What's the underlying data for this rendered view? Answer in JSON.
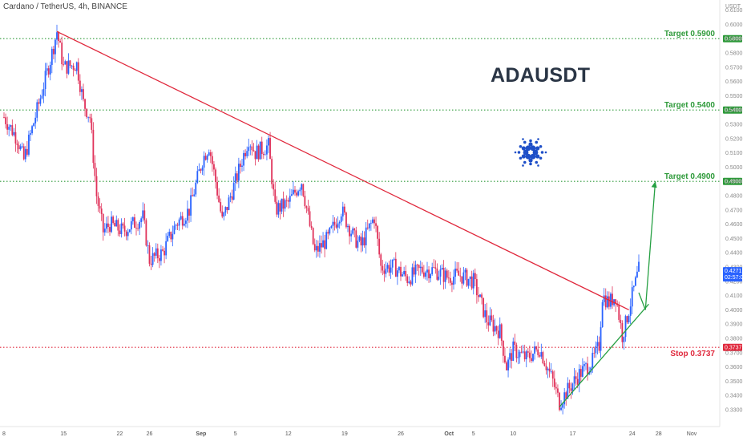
{
  "header": {
    "title": "Cardano / TetherUS, 4h, BINANCE",
    "currency": "USDT"
  },
  "symbol": "ADAUSDT",
  "colors": {
    "up": "#2962ff",
    "down": "#e0325a",
    "trendline": "#e0283c",
    "target": "#2e9a3a",
    "stop": "#e0283c",
    "support": "#26a043"
  },
  "chart_data": {
    "type": "candlestick",
    "title": "Cardano / TetherUS, 4h, BINANCE",
    "ylim": [
      0.325,
      0.615
    ],
    "yticks": [
      "0.6100",
      "0.6000",
      "0.5900",
      "0.5800",
      "0.5700",
      "0.5600",
      "0.5500",
      "0.5400",
      "0.5300",
      "0.5200",
      "0.5100",
      "0.5000",
      "0.4900",
      "0.4800",
      "0.4700",
      "0.4600",
      "0.4500",
      "0.4400",
      "0.4300",
      "0.4200",
      "0.4100",
      "0.4000",
      "0.3900",
      "0.3800",
      "0.3700",
      "0.3600",
      "0.3500",
      "0.3400",
      "0.3300"
    ],
    "x_labels": [
      "8",
      "15",
      "22",
      "26",
      "Sep",
      "5",
      "12",
      "19",
      "26",
      "Oct",
      "5",
      "10",
      "17",
      "24",
      "28",
      "Nov"
    ],
    "price_anchors": [
      {
        "d": 0,
        "p": 0.535
      },
      {
        "d": 2,
        "p": 0.52
      },
      {
        "d": 3,
        "p": 0.505
      },
      {
        "d": 5,
        "p": 0.54
      },
      {
        "d": 7,
        "p": 0.575
      },
      {
        "d": 8,
        "p": 0.595
      },
      {
        "d": 9,
        "p": 0.57
      },
      {
        "d": 11,
        "p": 0.572
      },
      {
        "d": 12,
        "p": 0.545
      },
      {
        "d": 13,
        "p": 0.535
      },
      {
        "d": 14,
        "p": 0.48
      },
      {
        "d": 15,
        "p": 0.455
      },
      {
        "d": 16,
        "p": 0.46
      },
      {
        "d": 18,
        "p": 0.455
      },
      {
        "d": 21,
        "p": 0.465
      },
      {
        "d": 22,
        "p": 0.435
      },
      {
        "d": 24,
        "p": 0.44
      },
      {
        "d": 26,
        "p": 0.46
      },
      {
        "d": 28,
        "p": 0.47
      },
      {
        "d": 30,
        "p": 0.505
      },
      {
        "d": 31,
        "p": 0.515
      },
      {
        "d": 32,
        "p": 0.49
      },
      {
        "d": 33,
        "p": 0.462
      },
      {
        "d": 35,
        "p": 0.49
      },
      {
        "d": 37,
        "p": 0.52
      },
      {
        "d": 38,
        "p": 0.51
      },
      {
        "d": 40,
        "p": 0.515
      },
      {
        "d": 41,
        "p": 0.47
      },
      {
        "d": 43,
        "p": 0.475
      },
      {
        "d": 45,
        "p": 0.49
      },
      {
        "d": 46,
        "p": 0.465
      },
      {
        "d": 47,
        "p": 0.44
      },
      {
        "d": 49,
        "p": 0.45
      },
      {
        "d": 51,
        "p": 0.47
      },
      {
        "d": 53,
        "p": 0.45
      },
      {
        "d": 54,
        "p": 0.445
      },
      {
        "d": 56,
        "p": 0.465
      },
      {
        "d": 57,
        "p": 0.43
      },
      {
        "d": 59,
        "p": 0.43
      },
      {
        "d": 61,
        "p": 0.422
      },
      {
        "d": 63,
        "p": 0.428
      },
      {
        "d": 65,
        "p": 0.428
      },
      {
        "d": 67,
        "p": 0.423
      },
      {
        "d": 69,
        "p": 0.424
      },
      {
        "d": 71,
        "p": 0.42
      },
      {
        "d": 73,
        "p": 0.393
      },
      {
        "d": 75,
        "p": 0.385
      },
      {
        "d": 76,
        "p": 0.36
      },
      {
        "d": 77,
        "p": 0.372
      },
      {
        "d": 79,
        "p": 0.366
      },
      {
        "d": 81,
        "p": 0.373
      },
      {
        "d": 83,
        "p": 0.35
      },
      {
        "d": 84,
        "p": 0.335
      },
      {
        "d": 85,
        "p": 0.342
      },
      {
        "d": 87,
        "p": 0.355
      },
      {
        "d": 89,
        "p": 0.364
      },
      {
        "d": 90,
        "p": 0.375
      },
      {
        "d": 90.5,
        "p": 0.41
      },
      {
        "d": 91.5,
        "p": 0.405
      },
      {
        "d": 92.5,
        "p": 0.41
      },
      {
        "d": 93.5,
        "p": 0.382
      },
      {
        "d": 94,
        "p": 0.39
      },
      {
        "d": 95,
        "p": 0.41
      },
      {
        "d": 96,
        "p": 0.428
      }
    ],
    "last_price": "0.4271",
    "countdown": "02:57:04",
    "levels": [
      {
        "label": "Target",
        "value": "0.5900"
      },
      {
        "label": "Target",
        "value": "0.5400"
      },
      {
        "label": "Target",
        "value": "0.4900"
      },
      {
        "label": "Stop",
        "value": "0.3737"
      }
    ],
    "trendline": {
      "from": {
        "d": 8,
        "p": 0.595
      },
      "to": {
        "d": 94.5,
        "p": 0.4
      }
    },
    "support_line": {
      "from": {
        "d": 84,
        "p": 0.332
      },
      "to": {
        "d": 97.5,
        "p": 0.404
      }
    },
    "projection": [
      {
        "d": 96,
        "p": 0.412
      },
      {
        "d": 97,
        "p": 0.4
      },
      {
        "d": 98.5,
        "p": 0.49
      }
    ]
  }
}
